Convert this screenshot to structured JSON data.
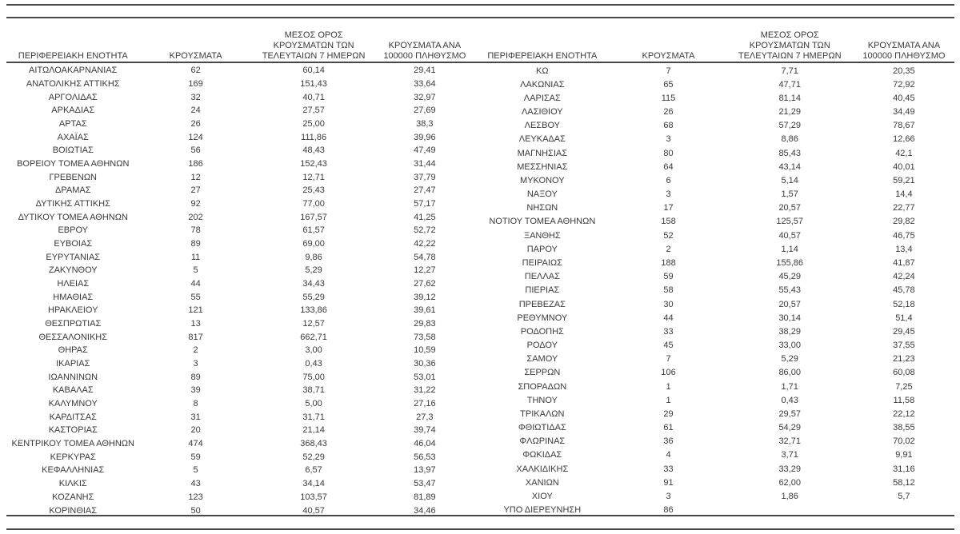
{
  "colors": {
    "text": "#3a3a3a",
    "rule": "#484848",
    "background": "#ffffff"
  },
  "table": {
    "columns": {
      "region": "ΠΕΡΙΦΕΡΕΙΑΚΗ ΕΝΟΤΗΤΑ",
      "cases": "ΚΡΟΥΣΜΑΤΑ",
      "avg7": "ΜΕΣΟΣ ΟΡΟΣ ΚΡΟΥΣΜΑΤΩΝ ΤΩΝ ΤΕΛΕΥΤΑΙΩΝ 7 ΗΜΕΡΩΝ",
      "per100k": "ΚΡΟΥΣΜΑΤΑ ΑΝΑ 100000 ΠΛΗΘΥΣΜΟ"
    },
    "left_rows": [
      [
        "ΑΙΤΩΛΟΑΚΑΡΝΑΝΙΑΣ",
        "62",
        "60,14",
        "29,41"
      ],
      [
        "ΑΝΑΤΟΛΙΚΗΣ ΑΤΤΙΚΗΣ",
        "169",
        "151,43",
        "33,64"
      ],
      [
        "ΑΡΓΟΛΙΔΑΣ",
        "32",
        "40,71",
        "32,97"
      ],
      [
        "ΑΡΚΑΔΙΑΣ",
        "24",
        "27,57",
        "27,69"
      ],
      [
        "ΑΡΤΑΣ",
        "26",
        "25,00",
        "38,3"
      ],
      [
        "ΑΧΑΪΑΣ",
        "124",
        "111,86",
        "39,96"
      ],
      [
        "ΒΟΙΩΤΙΑΣ",
        "56",
        "48,43",
        "47,49"
      ],
      [
        "ΒΟΡΕΙΟΥ ΤΟΜΕΑ ΑΘΗΝΩΝ",
        "186",
        "152,43",
        "31,44"
      ],
      [
        "ΓΡΕΒΕΝΩΝ",
        "12",
        "12,71",
        "37,79"
      ],
      [
        "ΔΡΑΜΑΣ",
        "27",
        "25,43",
        "27,47"
      ],
      [
        "ΔΥΤΙΚΗΣ ΑΤΤΙΚΗΣ",
        "92",
        "77,00",
        "57,17"
      ],
      [
        "ΔΥΤΙΚΟΥ ΤΟΜΕΑ ΑΘΗΝΩΝ",
        "202",
        "167,57",
        "41,25"
      ],
      [
        "ΕΒΡΟΥ",
        "78",
        "61,57",
        "52,72"
      ],
      [
        "ΕΥΒΟΙΑΣ",
        "89",
        "69,00",
        "42,22"
      ],
      [
        "ΕΥΡΥΤΑΝΙΑΣ",
        "11",
        "9,86",
        "54,78"
      ],
      [
        "ΖΑΚΥΝΘΟΥ",
        "5",
        "5,29",
        "12,27"
      ],
      [
        "ΗΛΕΙΑΣ",
        "44",
        "34,43",
        "27,62"
      ],
      [
        "ΗΜΑΘΙΑΣ",
        "55",
        "55,29",
        "39,12"
      ],
      [
        "ΗΡΑΚΛΕΙΟΥ",
        "121",
        "133,86",
        "39,61"
      ],
      [
        "ΘΕΣΠΡΩΤΙΑΣ",
        "13",
        "12,57",
        "29,83"
      ],
      [
        "ΘΕΣΣΑΛΟΝΙΚΗΣ",
        "817",
        "662,71",
        "73,58"
      ],
      [
        "ΘΗΡΑΣ",
        "2",
        "3,00",
        "10,59"
      ],
      [
        "ΙΚΑΡΙΑΣ",
        "3",
        "0,43",
        "30,36"
      ],
      [
        "ΙΩΑΝΝΙΝΩΝ",
        "89",
        "75,00",
        "53,01"
      ],
      [
        "ΚΑΒΑΛΑΣ",
        "39",
        "38,71",
        "31,22"
      ],
      [
        "ΚΑΛΥΜΝΟΥ",
        "8",
        "5,00",
        "27,16"
      ],
      [
        "ΚΑΡΔΙΤΣΑΣ",
        "31",
        "31,71",
        "27,3"
      ],
      [
        "ΚΑΣΤΟΡΙΑΣ",
        "20",
        "21,14",
        "39,74"
      ],
      [
        "ΚΕΝΤΡΙΚΟΥ ΤΟΜΕΑ ΑΘΗΝΩΝ",
        "474",
        "368,43",
        "46,04"
      ],
      [
        "ΚΕΡΚΥΡΑΣ",
        "59",
        "52,29",
        "56,53"
      ],
      [
        "ΚΕΦΑΛΛΗΝΙΑΣ",
        "5",
        "6,57",
        "13,97"
      ],
      [
        "ΚΙΛΚΙΣ",
        "43",
        "34,14",
        "53,47"
      ],
      [
        "ΚΟΖΑΝΗΣ",
        "123",
        "103,57",
        "81,89"
      ],
      [
        "ΚΟΡΙΝΘΙΑΣ",
        "50",
        "40,57",
        "34,46"
      ]
    ],
    "right_rows": [
      [
        "ΚΩ",
        "7",
        "7,71",
        "20,35"
      ],
      [
        "ΛΑΚΩΝΙΑΣ",
        "65",
        "47,71",
        "72,92"
      ],
      [
        "ΛΑΡΙΣΑΣ",
        "115",
        "81,14",
        "40,45"
      ],
      [
        "ΛΑΣΙΘΙΟΥ",
        "26",
        "21,29",
        "34,49"
      ],
      [
        "ΛΕΣΒΟΥ",
        "68",
        "57,29",
        "78,67"
      ],
      [
        "ΛΕΥΚΑΔΑΣ",
        "3",
        "8,86",
        "12,66"
      ],
      [
        "ΜΑΓΝΗΣΙΑΣ",
        "80",
        "85,43",
        "42,1"
      ],
      [
        "ΜΕΣΣΗΝΙΑΣ",
        "64",
        "43,14",
        "40,01"
      ],
      [
        "ΜΥΚΟΝΟΥ",
        "6",
        "5,14",
        "59,21"
      ],
      [
        "ΝΑΞΟΥ",
        "3",
        "1,57",
        "14,4"
      ],
      [
        "ΝΗΣΩΝ",
        "17",
        "20,57",
        "22,77"
      ],
      [
        "ΝΟΤΙΟΥ ΤΟΜΕΑ ΑΘΗΝΩΝ",
        "158",
        "125,57",
        "29,82"
      ],
      [
        "ΞΑΝΘΗΣ",
        "52",
        "40,57",
        "46,75"
      ],
      [
        "ΠΑΡΟΥ",
        "2",
        "1,14",
        "13,4"
      ],
      [
        "ΠΕΙΡΑΙΩΣ",
        "188",
        "155,86",
        "41,87"
      ],
      [
        "ΠΕΛΛΑΣ",
        "59",
        "45,29",
        "42,24"
      ],
      [
        "ΠΙΕΡΙΑΣ",
        "58",
        "55,43",
        "45,78"
      ],
      [
        "ΠΡΕΒΕΖΑΣ",
        "30",
        "20,57",
        "52,18"
      ],
      [
        "ΡΕΘΥΜΝΟΥ",
        "44",
        "30,14",
        "51,4"
      ],
      [
        "ΡΟΔΟΠΗΣ",
        "33",
        "38,29",
        "29,45"
      ],
      [
        "ΡΟΔΟΥ",
        "45",
        "33,00",
        "37,55"
      ],
      [
        "ΣΑΜΟΥ",
        "7",
        "5,29",
        "21,23"
      ],
      [
        "ΣΕΡΡΩΝ",
        "106",
        "86,00",
        "60,08"
      ],
      [
        "ΣΠΟΡΑΔΩΝ",
        "1",
        "1,71",
        "7,25"
      ],
      [
        "ΤΗΝΟΥ",
        "1",
        "0,43",
        "11,58"
      ],
      [
        "ΤΡΙΚΑΛΩΝ",
        "29",
        "29,57",
        "22,12"
      ],
      [
        "ΦΘΙΩΤΙΔΑΣ",
        "61",
        "54,29",
        "38,55"
      ],
      [
        "ΦΛΩΡΙΝΑΣ",
        "36",
        "32,71",
        "70,02"
      ],
      [
        "ΦΩΚΙΔΑΣ",
        "4",
        "3,71",
        "9,91"
      ],
      [
        "ΧΑΛΚΙΔΙΚΗΣ",
        "33",
        "33,29",
        "31,16"
      ],
      [
        "ΧΑΝΙΩΝ",
        "91",
        "62,00",
        "58,12"
      ],
      [
        "ΧΙΟΥ",
        "3",
        "1,86",
        "5,7"
      ],
      [
        "ΥΠΟ ΔΙΕΡΕΥΝΗΣΗ",
        "86",
        "",
        ""
      ]
    ]
  }
}
